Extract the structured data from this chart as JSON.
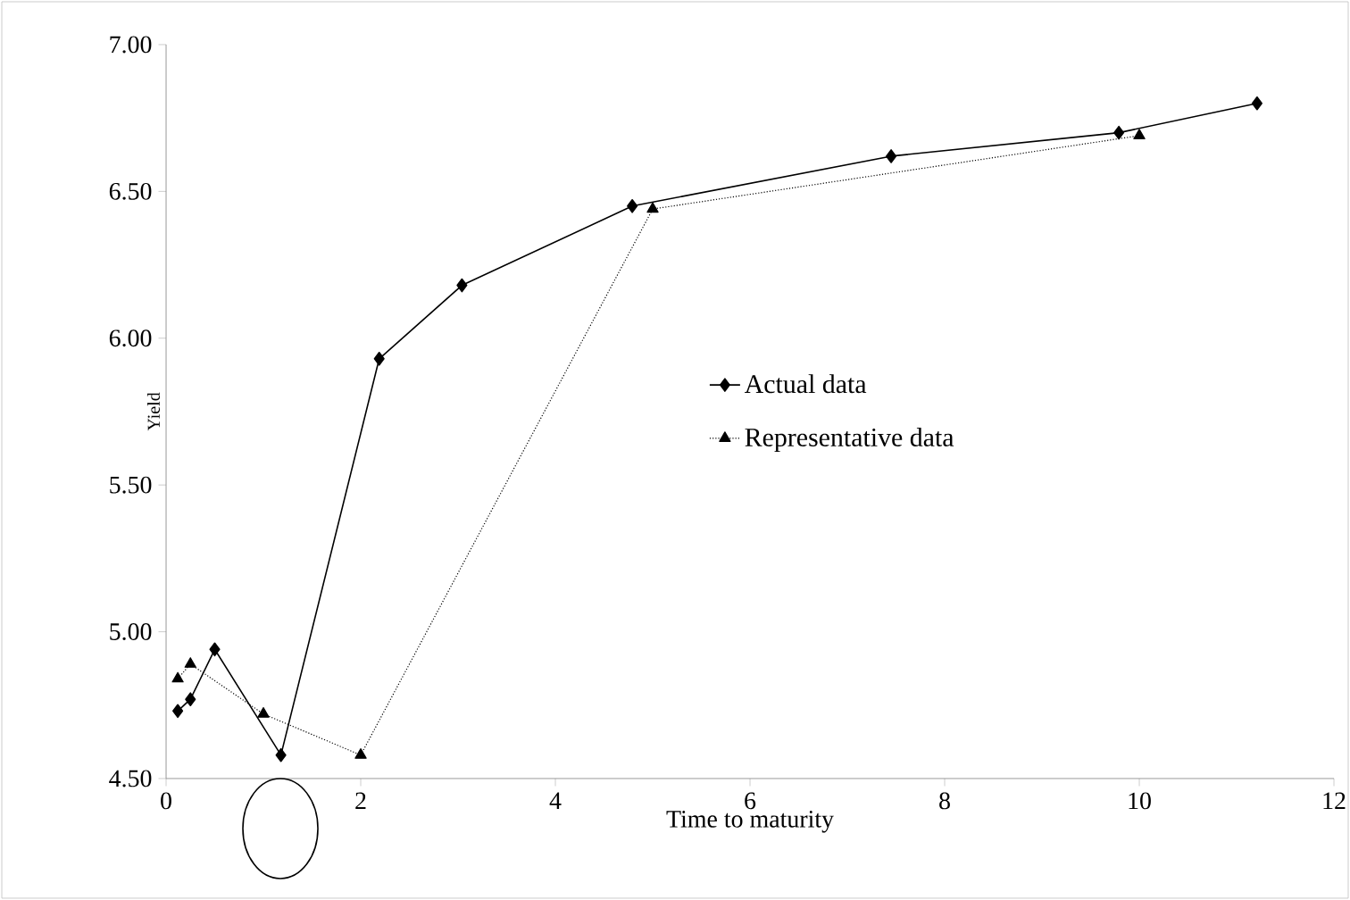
{
  "chart_data": {
    "type": "line",
    "xlabel": "Time to maturity",
    "ylabel": "Yield",
    "xlim": [
      0,
      12
    ],
    "xticks": [
      0,
      2,
      4,
      6,
      8,
      10,
      12
    ],
    "ylim": [
      4.5,
      7.0
    ],
    "yticks": [
      {
        "value": 4.5,
        "label": "4.50"
      },
      {
        "value": 5.0,
        "label": "5.00"
      },
      {
        "value": 5.5,
        "label": "5.50"
      },
      {
        "value": 6.0,
        "label": "6.00"
      },
      {
        "value": 6.5,
        "label": "6.50"
      },
      {
        "value": 7.0,
        "label": "7.00"
      }
    ],
    "grid": false,
    "legend": "right",
    "series": [
      {
        "name": "Actual data",
        "color": "#000000",
        "marker": "diamond",
        "line_style": "solid",
        "x": [
          0.12,
          0.25,
          0.5,
          1.18,
          2.19,
          3.04,
          4.79,
          7.45,
          9.79,
          11.21
        ],
        "values": [
          4.73,
          4.77,
          4.94,
          4.58,
          5.93,
          6.18,
          6.45,
          6.62,
          6.7,
          6.8
        ]
      },
      {
        "name": "Representative data",
        "color": "#000000",
        "marker": "triangle",
        "line_style": "dotted",
        "x": [
          0.12,
          0.25,
          1.0,
          2.0,
          5.0,
          10.0
        ],
        "values": [
          4.84,
          4.89,
          4.72,
          4.58,
          6.44,
          6.69
        ]
      }
    ]
  }
}
